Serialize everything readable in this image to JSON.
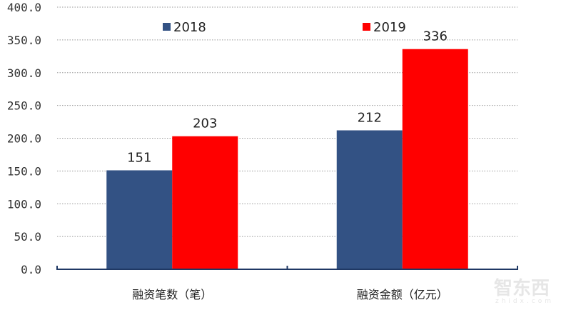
{
  "chart_data": {
    "type": "bar",
    "categories": [
      "融资笔数（笔）",
      "融资金额（亿元）"
    ],
    "series": [
      {
        "name": "2018",
        "values": [
          151,
          212
        ],
        "color": "#335284"
      },
      {
        "name": "2019",
        "values": [
          203,
          336
        ],
        "color": "#ff0000"
      }
    ],
    "ylim": [
      0,
      400
    ],
    "yticks": [
      "0.0",
      "50.0",
      "100.0",
      "150.0",
      "200.0",
      "250.0",
      "300.0",
      "350.0",
      "400.0"
    ],
    "grid": true,
    "legend_position": "top",
    "axis_color": "#1f3864"
  },
  "watermark": {
    "text": "智东西",
    "subtext": "zhidx.com"
  }
}
